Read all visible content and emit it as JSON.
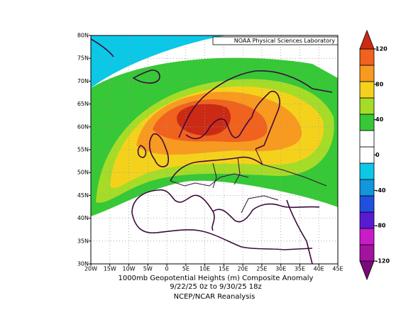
{
  "credit": "NOAA Physical Sciences Laboratory",
  "title_lines": [
    "1000mb Geopotential Heights (m)   Composite Anomaly",
    "9/22/25 0z  to 9/30/25 18z"
  ],
  "source": "NCEP/NCAR Reanalysis",
  "lat_labels": [
    "30N",
    "35N",
    "40N",
    "45N",
    "50N",
    "55N",
    "60N",
    "65N",
    "70N",
    "75N",
    "80N"
  ],
  "lon_labels": [
    "20W",
    "15W",
    "10W",
    "5W",
    "0",
    "5E",
    "10E",
    "15E",
    "20E",
    "25E",
    "30E",
    "35E",
    "40E",
    "45E"
  ],
  "colorbar": {
    "levels": [
      -120,
      -80,
      -40,
      0,
      40,
      80,
      120
    ],
    "colors": [
      "#7a0a7a",
      "#a3139f",
      "#c81cc8",
      "#5a1ad2",
      "#2050e0",
      "#1496dc",
      "#0ac8e6",
      "#ffffff",
      "#ffffff",
      "#36c836",
      "#a6dc28",
      "#f4d21c",
      "#f89a20",
      "#f0621e",
      "#cc2a14"
    ]
  }
}
